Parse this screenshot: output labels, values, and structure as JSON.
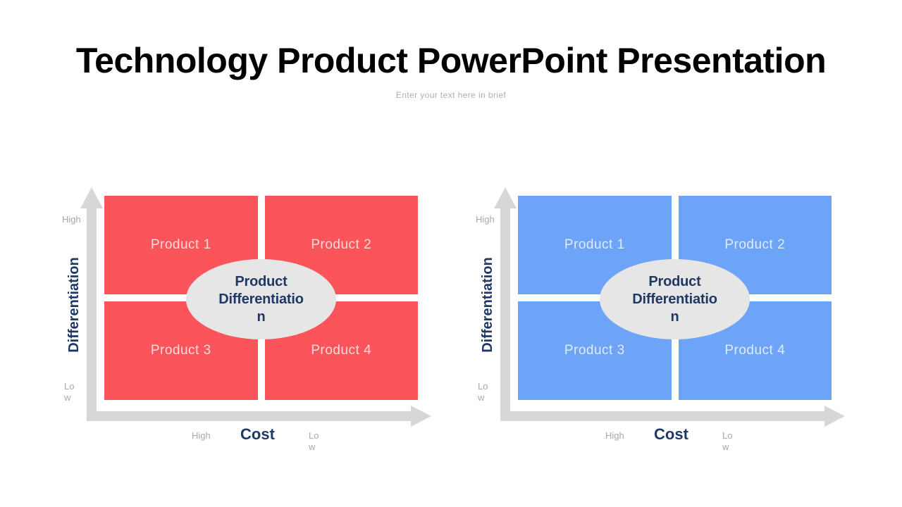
{
  "slide": {
    "title": "Technology Product PowerPoint Presentation",
    "subtitle": "Enter your text here in brief"
  },
  "colors": {
    "red_quadrant": "#FB555B",
    "blue_quadrant": "#6EA4F8",
    "ellipse_fill": "#E7E6E6",
    "axis_gray": "#D7D7D7",
    "navy_text": "#1F3864",
    "muted_tick": "#A8A8A8",
    "quad_label_text": "rgba(255,255,255,0.78)"
  },
  "charts": [
    {
      "name": "red-product-differentiation-matrix",
      "quad_color": "#FB555B",
      "y_axis": {
        "label": "Differentiation",
        "high_tick": "High",
        "low_tick": "Lo\nw"
      },
      "x_axis": {
        "label": "Cost",
        "high_tick": "High",
        "low_tick": "Lo\nw"
      },
      "quadrants": [
        {
          "label": "Product 1"
        },
        {
          "label": "Product 2"
        },
        {
          "label": "Product 3"
        },
        {
          "label": "Product 4"
        }
      ],
      "center_ellipse": {
        "full_text": "Product Differentiation",
        "lines": [
          "Product",
          "Differentiatio",
          "n"
        ]
      }
    },
    {
      "name": "blue-product-differentiation-matrix",
      "quad_color": "#6EA4F8",
      "y_axis": {
        "label": "Differentiation",
        "high_tick": "High",
        "low_tick": "Lo\nw"
      },
      "x_axis": {
        "label": "Cost",
        "high_tick": "High",
        "low_tick": "Lo\nw"
      },
      "quadrants": [
        {
          "label": "Product 1"
        },
        {
          "label": "Product 2"
        },
        {
          "label": "Product 3"
        },
        {
          "label": "Product 4"
        }
      ],
      "center_ellipse": {
        "full_text": "Product Differentiation",
        "lines": [
          "Product",
          "Differentiatio",
          "n"
        ]
      }
    }
  ]
}
